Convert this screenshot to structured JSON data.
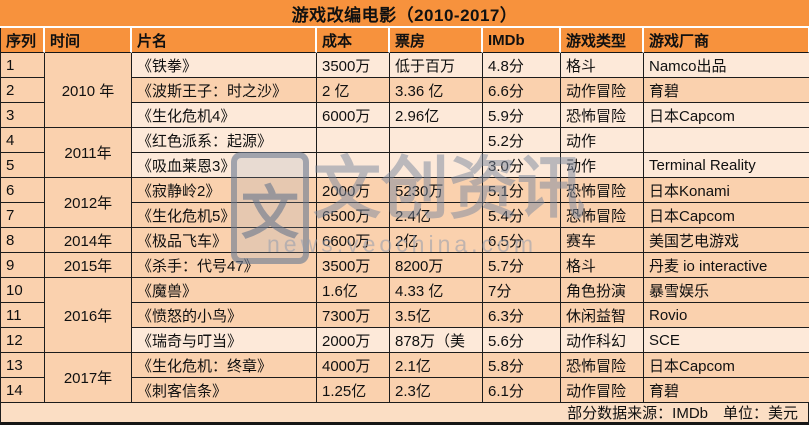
{
  "title": "游戏改编电影（2010-2017）",
  "columns": [
    {
      "key": "seq",
      "label": "序列"
    },
    {
      "key": "year",
      "label": "时间"
    },
    {
      "key": "title",
      "label": "片名"
    },
    {
      "key": "cost",
      "label": "成本"
    },
    {
      "key": "box",
      "label": "票房"
    },
    {
      "key": "imdb",
      "label": "IMDb"
    },
    {
      "key": "genre",
      "label": "游戏类型"
    },
    {
      "key": "maker",
      "label": "游戏厂商"
    }
  ],
  "rows": [
    {
      "seq": "1",
      "year": "2010 年",
      "year_span": 3,
      "title": "《铁拳》",
      "cost": "3500万",
      "box": "低于百万",
      "imdb": "4.8分",
      "genre": "格斗",
      "maker": "Namco出品",
      "shade": "light"
    },
    {
      "seq": "2",
      "title": "《波斯王子：时之沙》",
      "cost": "2 亿",
      "box": "3.36 亿",
      "imdb": "6.6分",
      "genre": "动作冒险",
      "maker": "育碧",
      "shade": "peach"
    },
    {
      "seq": "3",
      "title": "《生化危机4》",
      "cost": "6000万",
      "box": "2.96亿",
      "imdb": "5.9分",
      "genre": "恐怖冒险",
      "maker": "日本Capcom",
      "shade": "light"
    },
    {
      "seq": "4",
      "year": "2011年",
      "year_span": 2,
      "title": "《红色派系：起源》",
      "cost": "",
      "box": "",
      "imdb": "5.2分",
      "genre": "动作",
      "maker": "",
      "shade": "light"
    },
    {
      "seq": "5",
      "title": "《吸血莱恩3》",
      "cost": "",
      "box": "",
      "imdb": "3.0分",
      "genre": "动作",
      "maker": "Terminal Reality",
      "shade": "light"
    },
    {
      "seq": "6",
      "year": "2012年",
      "year_span": 2,
      "title": "《寂静岭2》",
      "cost": "2000万",
      "box": "5230万",
      "imdb": "5.1分",
      "genre": "恐怖冒险",
      "maker": "日本Konami",
      "shade": "peach"
    },
    {
      "seq": "7",
      "title": "《生化危机5》",
      "cost": "6500万",
      "box": "2.4亿",
      "imdb": "5.4分",
      "genre": "恐怖冒险",
      "maker": "日本Capcom",
      "shade": "peach"
    },
    {
      "seq": "8",
      "year": "2014年",
      "year_span": 1,
      "title": "《极品飞车》",
      "cost": "6600万",
      "box": "2亿",
      "imdb": "6.5分",
      "genre": "赛车",
      "maker": "美国艺电游戏",
      "shade": "peach"
    },
    {
      "seq": "9",
      "year": "2015年",
      "year_span": 1,
      "title": "《杀手：代号47》",
      "cost": "3500万",
      "box": "8200万",
      "imdb": "5.7分",
      "genre": "格斗",
      "maker": "丹麦 io interactive",
      "shade": "peach"
    },
    {
      "seq": "10",
      "year": "2016年",
      "year_span": 3,
      "title": "《魔兽》",
      "cost": "1.6亿",
      "box": "4.33 亿",
      "imdb": "7分",
      "genre": "角色扮演",
      "maker": "暴雪娱乐",
      "shade": "peach"
    },
    {
      "seq": "11",
      "title": "《愤怒的小鸟》",
      "cost": "7300万",
      "box": "3.5亿",
      "imdb": "6.3分",
      "genre": "休闲益智",
      "maker": "Rovio",
      "shade": "peach"
    },
    {
      "seq": "12",
      "title": "《瑞奇与叮当》",
      "cost": "2000万",
      "box": "878万（美",
      "imdb": "5.6分",
      "genre": "动作科幻",
      "maker": "SCE",
      "shade": "light"
    },
    {
      "seq": "13",
      "year": "2017年",
      "year_span": 2,
      "title": "《生化危机：终章》",
      "cost": "4000万",
      "box": "2.1亿",
      "imdb": "5.8分",
      "genre": "恐怖冒险",
      "maker": "日本Capcom",
      "shade": "peach"
    },
    {
      "seq": "14",
      "title": "《刺客信条》",
      "cost": "1.25亿",
      "box": "2.3亿",
      "imdb": "6.1分",
      "genre": "动作冒险",
      "maker": "育碧",
      "shade": "peach"
    }
  ],
  "footnote": "部分数据来源：IMDb　单位：美元",
  "watermark": {
    "brand": "文创资讯",
    "url": "news.veochina.com",
    "logo_char": "文"
  },
  "colors": {
    "accent_orange": "#F7923D",
    "row_peach": "#FAD1AE",
    "row_light": "#FDE9D9",
    "footer_band": "#FBDEC4",
    "border_black": "#1C1C1C",
    "watermark_gray": "#79889E"
  }
}
